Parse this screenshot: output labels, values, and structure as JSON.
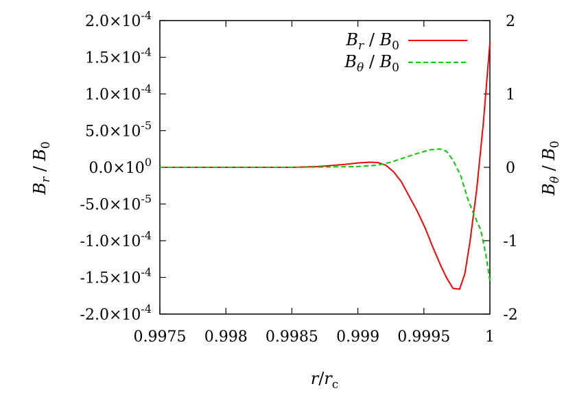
{
  "chart_data": {
    "type": "line",
    "xlabel": "r/r_c",
    "ylabel_left": "B_r / B_0",
    "ylabel_right": "B_θ / B_0",
    "xlim": [
      0.9975,
      1.0
    ],
    "ylim_left": [
      -0.0002,
      0.0002
    ],
    "ylim_right": [
      -2,
      2
    ],
    "x_tick_labels": [
      "0.9975",
      "0.998",
      "0.9985",
      "0.999",
      "0.9995",
      "1"
    ],
    "x_ticks": [
      0.9975,
      0.998,
      0.9985,
      0.999,
      0.9995,
      1.0
    ],
    "left_tick_labels": [
      "2.0×10^-4",
      "1.5×10^-4",
      "1.0×10^-4",
      "5.0×10^-5",
      "0.0×10^0",
      "-5.0×10^-5",
      "-1.0×10^-4",
      "-1.5×10^-4",
      "-2.0×10^-4"
    ],
    "left_ticks": [
      0.0002,
      0.00015,
      0.0001,
      5e-05,
      0,
      -5e-05,
      -0.0001,
      -0.00015,
      -0.0002
    ],
    "right_tick_labels": [
      "2",
      "1",
      "0",
      "-1",
      "-2"
    ],
    "right_ticks": [
      2,
      1,
      0,
      -1,
      -2
    ],
    "grid": false,
    "legend_position": "top-right",
    "series": [
      {
        "name": "B_r / B_0",
        "axis": "left",
        "color": "#ff0000",
        "dash": "solid",
        "x": [
          0.9975,
          0.998,
          0.9985,
          0.9987,
          0.9989,
          0.999,
          0.99909,
          0.99915,
          0.99921,
          0.99927,
          0.99933,
          0.99939,
          0.99945,
          0.99951,
          0.99957,
          0.99963,
          0.99967,
          0.99972,
          0.99977,
          0.99981,
          0.99985,
          0.9999,
          0.99995,
          1.0
        ],
        "y": [
          0,
          0,
          0,
          1e-06,
          4e-06,
          6e-06,
          7e-06,
          6.5e-06,
          3e-06,
          -6e-06,
          -2e-05,
          -4e-05,
          -6e-05,
          -8.3e-05,
          -0.00011,
          -0.000135,
          -0.00015,
          -0.000165,
          -0.000166,
          -0.000145,
          -0.0001,
          -3e-05,
          6e-05,
          0.00017
        ]
      },
      {
        "name": "B_θ / B_0",
        "axis": "right",
        "color": "#00cc00",
        "dash": "dashed",
        "x": [
          0.9975,
          0.998,
          0.9985,
          0.999,
          0.99915,
          0.99925,
          0.99935,
          0.99945,
          0.99955,
          0.99962,
          0.99967,
          0.99972,
          0.99978,
          0.99983,
          0.99988,
          0.99993,
          0.99997,
          1.0
        ],
        "y": [
          0,
          0,
          0,
          0.01,
          0.03,
          0.07,
          0.13,
          0.19,
          0.24,
          0.25,
          0.22,
          0.1,
          -0.12,
          -0.42,
          -0.65,
          -0.85,
          -1.2,
          -1.55
        ]
      }
    ]
  }
}
